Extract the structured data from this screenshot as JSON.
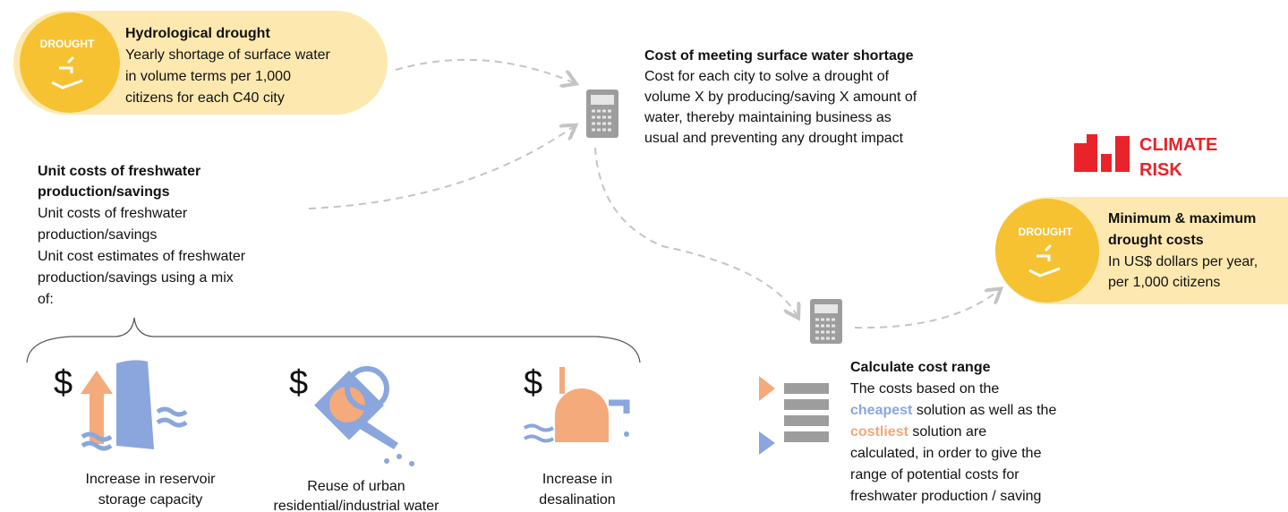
{
  "hydrological_drought": {
    "badge": "DROUGHT",
    "title": "Hydrological drought",
    "description_lines": [
      "Yearly shortage of surface water",
      "in volume terms per 1,000",
      "citizens for each C40 city"
    ]
  },
  "surface_water_cost": {
    "title": "Cost of meeting surface water shortage",
    "description_lines": [
      "Cost for each city to solve a drought of",
      "volume X by producing/saving X amount of",
      "water, thereby maintaining business as",
      "usual and preventing any drought impact"
    ]
  },
  "unit_costs": {
    "title_lines": [
      "Unit costs of freshwater",
      "production/savings"
    ],
    "description_lines": [
      "Unit costs of freshwater",
      "production/savings",
      "Unit cost estimates of freshwater",
      "production/savings using a mix",
      "of:"
    ]
  },
  "options": [
    {
      "symbol": "$",
      "label_lines": [
        "Increase in reservoir",
        "storage capacity"
      ]
    },
    {
      "symbol": "$",
      "label_lines": [
        "Reuse of urban",
        "residential/industrial water"
      ]
    },
    {
      "symbol": "$",
      "label_lines": [
        "Increase in",
        "desalination"
      ]
    }
  ],
  "climate_risk": {
    "label_lines": [
      "CLIMATE",
      "RISK"
    ]
  },
  "drought_costs": {
    "badge": "DROUGHT",
    "title_lines": [
      "Minimum & maximum",
      "drought costs"
    ],
    "description_lines": [
      "In US$ dollars per year,",
      "per 1,000 citizens"
    ]
  },
  "cost_range": {
    "title": "Calculate cost range",
    "description_lines": [
      [
        {
          "text": "The costs based on the"
        }
      ],
      [
        {
          "text": "cheapest",
          "color": "#8aa6dc"
        },
        {
          "text": " solution as well as the"
        }
      ],
      [
        {
          "text": "costliest",
          "color": "#f2a77a"
        },
        {
          "text": " solution are"
        }
      ],
      [
        {
          "text": "calculated, in order to give the"
        }
      ],
      [
        {
          "text": "range of potential costs for"
        }
      ],
      [
        {
          "text": "freshwater production / saving"
        }
      ]
    ]
  }
}
